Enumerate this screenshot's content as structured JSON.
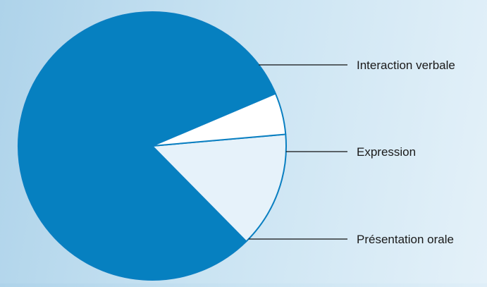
{
  "chart_data": {
    "type": "pie",
    "title": "",
    "labels": [
      "Interaction verbale",
      "Expression",
      "Présentation orale"
    ],
    "values": [
      81,
      14,
      5
    ],
    "colors": [
      "#0680c0",
      "#e6f2fa",
      "#ffffff"
    ],
    "edge_color": "#0a7fc1",
    "leader_color": "#111111",
    "legend": "none"
  }
}
